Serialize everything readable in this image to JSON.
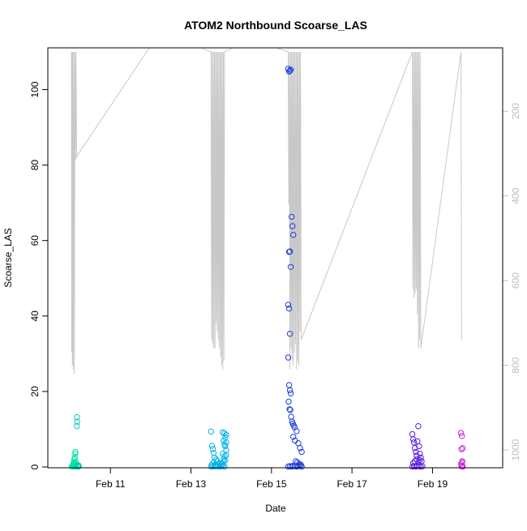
{
  "chart_data": {
    "type": "scatter",
    "title": "ATOM2 Northbound Scoarse_LAS",
    "xlabel": "Date",
    "ylabel": "Scoarse_LAS",
    "ylim": [
      0,
      110
    ],
    "y_ticks": [
      0,
      20,
      40,
      60,
      80,
      100
    ],
    "xlim": [
      "2019-02-09 16:00",
      "2019-02-20 13:00"
    ],
    "x_ticks": [
      {
        "date": "2019-02-11",
        "label": "Feb 11"
      },
      {
        "date": "2019-02-13",
        "label": "Feb 13"
      },
      {
        "date": "2019-02-15",
        "label": "Feb 15"
      },
      {
        "date": "2019-02-17",
        "label": "Feb 17"
      },
      {
        "date": "2019-02-19",
        "label": "Feb 19"
      }
    ],
    "y2_ticks": [
      200,
      400,
      600,
      800,
      1000
    ],
    "y2_range_inverted": [
      60,
      1040
    ],
    "grid": false,
    "legend": "none",
    "series": [
      {
        "kind": "points",
        "color": "#00e5a8",
        "x": [
          "2019-02-10 01:00",
          "2019-02-10 01:30",
          "2019-02-10 02:00",
          "2019-02-10 02:30",
          "2019-02-10 03:00",
          "2019-02-10 03:20",
          "2019-02-10 02:45",
          "2019-02-10 03:10",
          "2019-02-10 01:45",
          "2019-02-10 02:15",
          "2019-02-10 02:50",
          "2019-02-10 03:00",
          "2019-02-10 03:10",
          "2019-02-10 02:20",
          "2019-02-10 03:30",
          "2019-02-10 02:00"
        ],
        "y": [
          0.2,
          0.1,
          0.3,
          0.2,
          0.1,
          0.3,
          1.0,
          1.5,
          0.5,
          0.8,
          2.5,
          3.5,
          4.0,
          2.0,
          0.6,
          1.2
        ]
      },
      {
        "kind": "points",
        "color": "#00c8b8",
        "x": [
          "2019-02-10 04:00",
          "2019-02-10 04:10",
          "2019-02-10 04:00",
          "2019-02-10 04:20",
          "2019-02-10 04:30",
          "2019-02-10 04:40",
          "2019-02-10 05:00",
          "2019-02-10 05:10"
        ],
        "y": [
          13.2,
          12.0,
          10.8,
          0.3,
          0.2,
          0.1,
          0.4,
          0.2
        ]
      },
      {
        "kind": "points",
        "color": "#00b2e8",
        "x": [
          "2019-02-13 12:00",
          "2019-02-13 13:00",
          "2019-02-13 14:00",
          "2019-02-13 15:00",
          "2019-02-13 16:00",
          "2019-02-13 17:00",
          "2019-02-13 18:00",
          "2019-02-13 19:00",
          "2019-02-13 20:00",
          "2019-02-13 12:30",
          "2019-02-13 14:30",
          "2019-02-13 16:30",
          "2019-02-13 18:30",
          "2019-02-13 13:30",
          "2019-02-13 15:30",
          "2019-02-13 17:30",
          "2019-02-13 19:30",
          "2019-02-13 12:00",
          "2019-02-13 12:30",
          "2019-02-13 13:00",
          "2019-02-13 13:30",
          "2019-02-13 14:00",
          "2019-02-13 15:00",
          "2019-02-13 19:30",
          "2019-02-13 20:00",
          "2019-02-13 20:30",
          "2019-02-13 21:00",
          "2019-02-13 19:00",
          "2019-02-13 20:00",
          "2019-02-13 21:00",
          "2019-02-13 20:30",
          "2019-02-13 19:00",
          "2019-02-13 21:00",
          "2019-02-13 20:00",
          "2019-02-13 19:30",
          "2019-02-13 20:30",
          "2019-02-13 21:00"
        ],
        "y": [
          0.1,
          0.2,
          0.1,
          0.3,
          0.2,
          0.1,
          0.2,
          0.3,
          0.1,
          0.6,
          0.5,
          0.8,
          0.7,
          1.2,
          1.5,
          1.0,
          1.4,
          9.4,
          5.6,
          4.8,
          3.7,
          2.5,
          2.0,
          7.0,
          6.0,
          5.5,
          4.5,
          9.2,
          8.9,
          8.5,
          7.8,
          3.5,
          3.2,
          2.9,
          2.1,
          1.8,
          6.5
        ]
      },
      {
        "kind": "points",
        "color": "#1f3de0",
        "x": [
          "2019-02-15 10:00",
          "2019-02-15 11:00",
          "2019-02-15 12:00",
          "2019-02-15 13:00",
          "2019-02-15 14:00",
          "2019-02-15 15:00",
          "2019-02-15 16:00",
          "2019-02-15 17:00",
          "2019-02-15 18:00",
          "2019-02-15 10:00",
          "2019-02-15 10:30",
          "2019-02-15 11:00",
          "2019-02-15 11:30",
          "2019-02-15 12:00",
          "2019-02-15 12:30",
          "2019-02-15 13:00",
          "2019-02-15 10:30",
          "2019-02-15 11:00",
          "2019-02-15 11:30",
          "2019-02-15 10:00",
          "2019-02-15 10:30",
          "2019-02-15 11:00",
          "2019-02-15 10:00",
          "2019-02-15 10:30",
          "2019-02-15 11:00",
          "2019-02-15 11:30",
          "2019-02-15 10:15",
          "2019-02-15 10:45",
          "2019-02-15 11:15",
          "2019-02-15 11:45",
          "2019-02-15 12:15",
          "2019-02-15 12:45",
          "2019-02-15 13:15",
          "2019-02-15 13:45",
          "2019-02-15 15:00",
          "2019-02-15 16:00",
          "2019-02-15 17:00",
          "2019-02-15 18:00",
          "2019-02-15 14:30",
          "2019-02-15 15:30",
          "2019-02-15 16:30",
          "2019-02-15 17:30",
          "2019-02-15 13:00",
          "2019-02-15 14:00"
        ],
        "y": [
          0.1,
          0.2,
          0.1,
          0.3,
          0.2,
          0.1,
          0.2,
          0.3,
          0.1,
          105.5,
          104.8,
          105.0,
          105.3,
          66.3,
          63.8,
          61.5,
          57.0,
          57.1,
          53.0,
          43.0,
          42.0,
          35.3,
          29.0,
          21.7,
          20.3,
          19.5,
          17.3,
          15.3,
          15.1,
          13.3,
          12.0,
          11.5,
          11.0,
          10.5,
          9.5,
          6.3,
          5.0,
          4.0,
          1.5,
          1.2,
          0.8,
          0.6,
          8.0,
          7.0
        ]
      },
      {
        "kind": "points",
        "color": "#5a1ee0",
        "x": [
          "2019-02-18 12:00",
          "2019-02-18 13:00",
          "2019-02-18 14:00",
          "2019-02-18 15:00",
          "2019-02-18 16:00",
          "2019-02-18 17:00",
          "2019-02-18 18:00",
          "2019-02-18 12:30",
          "2019-02-18 13:30",
          "2019-02-18 14:30",
          "2019-02-18 15:30",
          "2019-02-18 16:30",
          "2019-02-18 12:00",
          "2019-02-18 12:30",
          "2019-02-18 13:00",
          "2019-02-18 13:30",
          "2019-02-18 14:00",
          "2019-02-18 14:30",
          "2019-02-18 15:00",
          "2019-02-18 15:30",
          "2019-02-18 16:00",
          "2019-02-18 16:30",
          "2019-02-18 17:00",
          "2019-02-18 17:30"
        ],
        "y": [
          0.1,
          0.2,
          0.1,
          0.3,
          0.2,
          0.1,
          0.2,
          1.0,
          1.5,
          2.0,
          1.2,
          1.8,
          8.7,
          7.3,
          6.5,
          5.0,
          4.0,
          3.0,
          6.8,
          10.8,
          5.5,
          3.5,
          2.5,
          1.5
        ]
      },
      {
        "kind": "points",
        "color": "#cc22dd",
        "x": [
          "2019-02-19 17:00",
          "2019-02-19 17:30",
          "2019-02-19 18:00",
          "2019-02-19 17:15",
          "2019-02-19 17:45",
          "2019-02-19 17:00",
          "2019-02-19 17:30",
          "2019-02-19 18:00",
          "2019-02-19 17:20",
          "2019-02-19 17:40"
        ],
        "y": [
          9.0,
          8.2,
          5.0,
          4.7,
          1.5,
          0.8,
          0.3,
          0.1,
          0.2,
          1.2
        ]
      }
    ],
    "secondary_series": {
      "kind": "line",
      "color": "#c8c8c8",
      "axis": "right-inverted",
      "x": [
        "2019-02-10 00:45",
        "2019-02-10 00:55",
        "2019-02-10 01:05",
        "2019-02-10 01:20",
        "2019-02-10 01:35",
        "2019-02-10 01:50",
        "2019-02-10 02:10",
        "2019-02-10 02:30",
        "2019-02-10 02:50",
        "2019-02-10 03:10",
        "2019-02-10 03:30",
        "2019-02-10 03:50",
        "2019-02-10 04:10",
        "2019-02-12 06:00",
        "2019-02-13 12:00",
        "2019-02-13 12:20",
        "2019-02-13 12:40",
        "2019-02-13 13:00",
        "2019-02-13 13:20",
        "2019-02-13 13:40",
        "2019-02-13 14:00",
        "2019-02-13 14:20",
        "2019-02-13 14:40",
        "2019-02-13 15:00",
        "2019-02-13 15:20",
        "2019-02-13 15:40",
        "2019-02-13 16:00",
        "2019-02-13 16:20",
        "2019-02-13 16:40",
        "2019-02-13 17:00",
        "2019-02-13 17:20",
        "2019-02-13 17:40",
        "2019-02-13 18:00",
        "2019-02-13 18:20",
        "2019-02-13 18:40",
        "2019-02-13 19:00",
        "2019-02-13 19:20",
        "2019-02-13 19:40",
        "2019-02-13 20:00",
        "2019-02-14 12:00",
        "2019-02-15 10:00",
        "2019-02-15 10:20",
        "2019-02-15 10:40",
        "2019-02-15 11:00",
        "2019-02-15 11:20",
        "2019-02-15 11:40",
        "2019-02-15 12:00",
        "2019-02-15 12:20",
        "2019-02-15 12:40",
        "2019-02-15 13:00",
        "2019-02-15 13:20",
        "2019-02-15 13:40",
        "2019-02-15 14:00",
        "2019-02-15 14:20",
        "2019-02-15 14:40",
        "2019-02-15 15:00",
        "2019-02-15 15:20",
        "2019-02-15 15:40",
        "2019-02-15 16:00",
        "2019-02-15 16:20",
        "2019-02-15 16:40",
        "2019-02-15 17:00",
        "2019-02-15 17:20",
        "2019-02-15 17:40",
        "2019-02-18 12:00",
        "2019-02-18 12:20",
        "2019-02-18 12:40",
        "2019-02-18 13:00",
        "2019-02-18 13:20",
        "2019-02-18 13:40",
        "2019-02-18 14:00",
        "2019-02-18 14:20",
        "2019-02-18 14:40",
        "2019-02-18 15:00",
        "2019-02-18 15:20",
        "2019-02-18 15:40",
        "2019-02-18 16:00",
        "2019-02-18 16:20",
        "2019-02-18 16:40",
        "2019-02-18 17:00",
        "2019-02-19 17:00",
        "2019-02-19 17:20"
      ],
      "y": [
        60,
        770,
        60,
        800,
        60,
        810,
        60,
        820,
        60,
        315,
        60,
        310,
        305,
        10,
        60,
        740,
        60,
        750,
        60,
        760,
        60,
        760,
        60,
        700,
        60,
        720,
        60,
        740,
        60,
        760,
        60,
        780,
        60,
        800,
        60,
        810,
        60,
        790,
        60,
        30,
        60,
        420,
        60,
        810,
        60,
        760,
        60,
        790,
        60,
        800,
        60,
        770,
        60,
        750,
        60,
        810,
        60,
        790,
        60,
        800,
        60,
        720,
        60,
        740,
        60,
        620,
        60,
        640,
        60,
        630,
        60,
        620,
        60,
        680,
        60,
        760,
        60,
        740,
        60,
        760,
        60,
        740
      ]
    }
  }
}
